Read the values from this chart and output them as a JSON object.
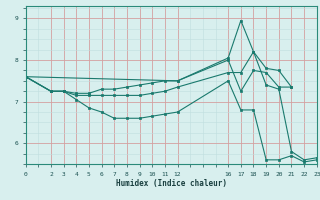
{
  "xlabel": "Humidex (Indice chaleur)",
  "bg_color": "#d8efee",
  "line_color": "#1a7a6e",
  "grid_major_color": "#d4a0a0",
  "grid_minor_color": "#c0dede",
  "xlim": [
    0,
    23
  ],
  "ylim": [
    5.5,
    9.3
  ],
  "xticks": [
    0,
    2,
    3,
    4,
    5,
    6,
    7,
    8,
    9,
    10,
    11,
    12,
    16,
    17,
    18,
    19,
    20,
    21,
    22,
    23
  ],
  "yticks": [
    6,
    7,
    8,
    9
  ],
  "lines": [
    {
      "x": [
        0,
        2,
        3,
        4,
        5,
        6,
        7,
        8,
        9,
        10,
        11,
        12,
        16,
        17,
        18,
        19,
        20,
        21,
        22,
        23
      ],
      "y": [
        7.6,
        7.25,
        7.25,
        7.05,
        6.85,
        6.75,
        6.6,
        6.6,
        6.6,
        6.65,
        6.7,
        6.75,
        7.5,
        6.8,
        6.8,
        5.6,
        5.6,
        5.7,
        5.55,
        5.6
      ]
    },
    {
      "x": [
        0,
        2,
        3,
        4,
        5,
        6,
        7,
        8,
        9,
        10,
        11,
        12,
        16,
        17,
        18,
        19,
        20,
        21,
        22,
        23
      ],
      "y": [
        7.6,
        7.25,
        7.25,
        7.15,
        7.15,
        7.15,
        7.15,
        7.15,
        7.15,
        7.2,
        7.25,
        7.35,
        7.7,
        7.7,
        8.2,
        7.4,
        7.3,
        5.8,
        5.6,
        5.65
      ]
    },
    {
      "x": [
        0,
        2,
        3,
        4,
        5,
        6,
        7,
        8,
        9,
        10,
        11,
        12,
        16,
        17,
        18,
        19,
        20,
        21
      ],
      "y": [
        7.6,
        7.25,
        7.25,
        7.2,
        7.2,
        7.3,
        7.3,
        7.35,
        7.4,
        7.45,
        7.5,
        7.5,
        8.05,
        8.95,
        8.2,
        7.8,
        7.75,
        7.35
      ]
    },
    {
      "x": [
        0,
        12,
        16,
        17,
        18,
        19,
        20,
        21
      ],
      "y": [
        7.6,
        7.5,
        8.0,
        7.25,
        7.75,
        7.7,
        7.35,
        7.35
      ]
    }
  ]
}
